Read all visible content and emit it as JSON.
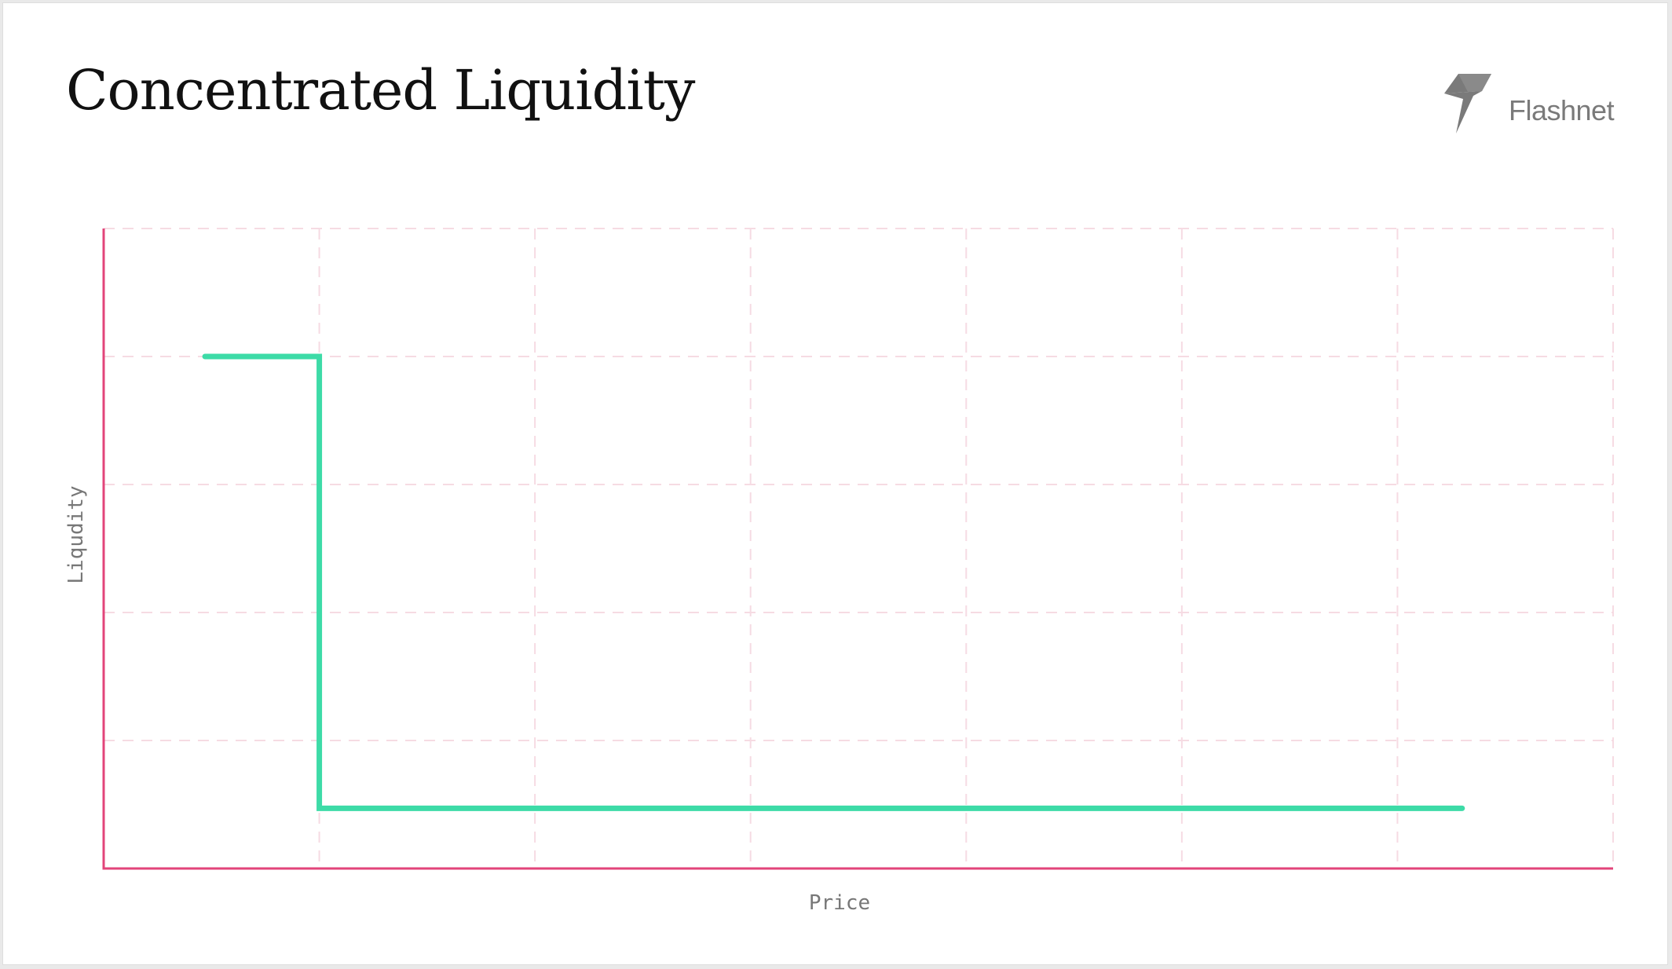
{
  "header": {
    "title": "Concentrated Liquidity"
  },
  "brand": {
    "name": "Flashnet",
    "icon": "flashnet-bolt-icon",
    "color": "#7a7a7a"
  },
  "chart_data": {
    "type": "line",
    "step": true,
    "title": "Concentrated Liquidity",
    "xlabel": "Price",
    "ylabel": "Liqudity",
    "ticks_shown": false,
    "grid": true,
    "legend": "none",
    "xlim": [
      0,
      7
    ],
    "ylim": [
      0,
      5
    ],
    "series": [
      {
        "color": "#3ddba7",
        "points": [
          [
            0.47,
            4
          ],
          [
            1,
            4
          ],
          [
            1,
            0.47
          ],
          [
            6.3,
            0.47
          ]
        ]
      }
    ],
    "colors": {
      "axis": "#e2447a",
      "grid": "#f6dbe3",
      "line": "#3ddba7"
    }
  }
}
